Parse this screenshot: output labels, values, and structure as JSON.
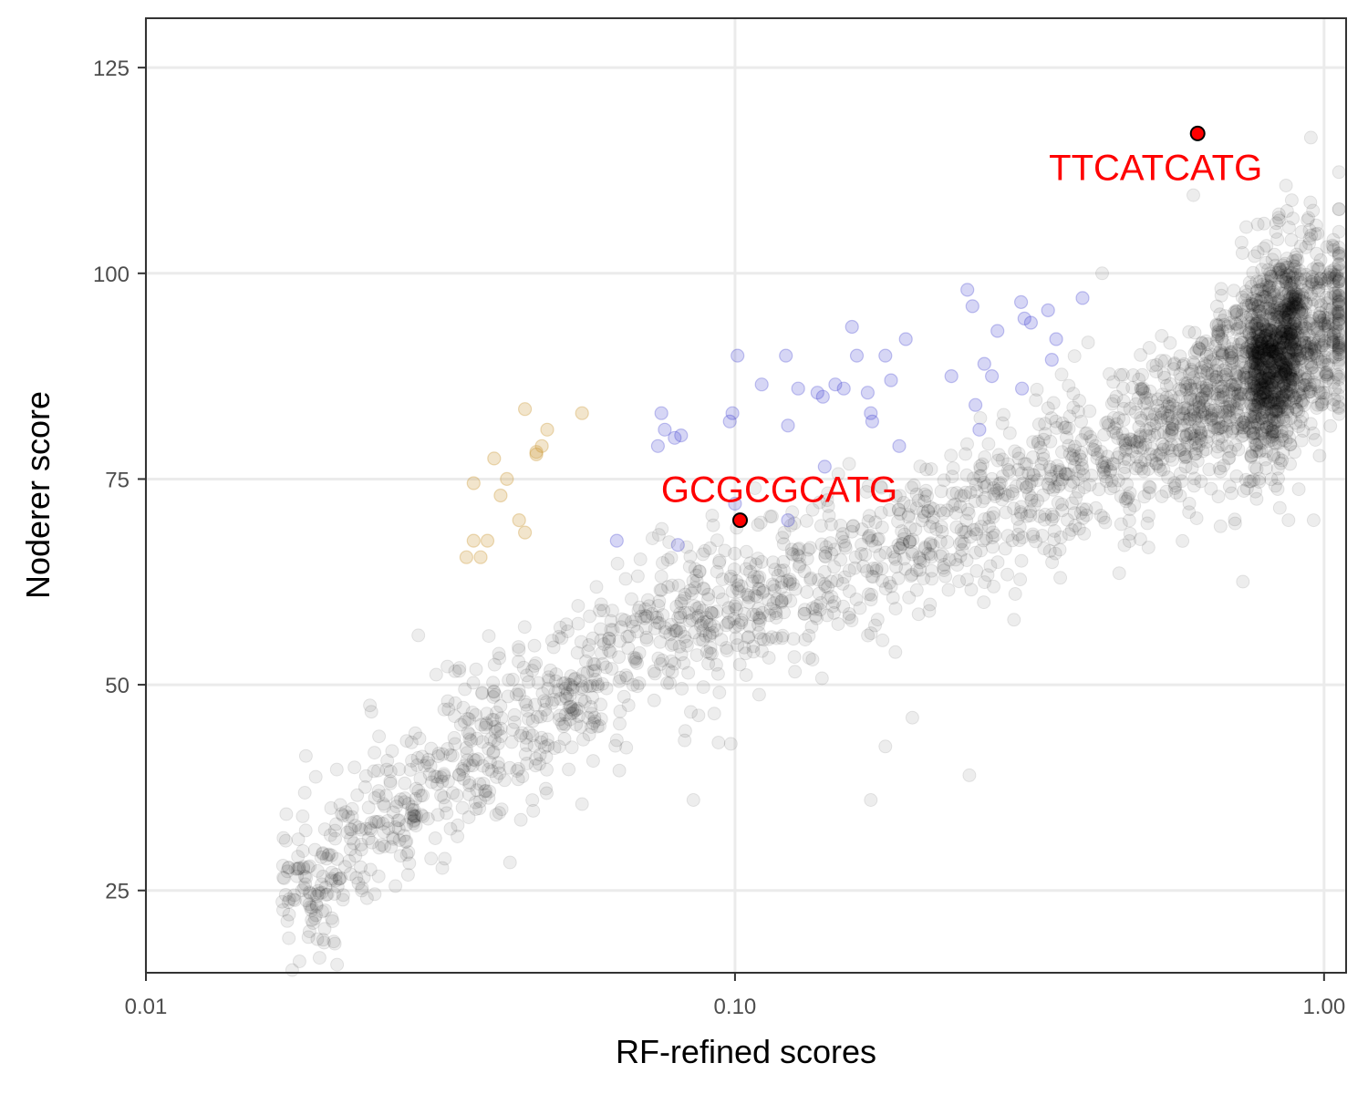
{
  "chart_data": {
    "type": "scatter",
    "title": "",
    "xlabel": "RF-refined scores",
    "ylabel": "Noderer score",
    "x_scale": "log10",
    "xlim": [
      0.01,
      1.09
    ],
    "ylim": [
      15,
      131
    ],
    "x_ticks": [
      {
        "value": 0.01,
        "label": "0.01"
      },
      {
        "value": 0.1,
        "label": "0.10"
      },
      {
        "value": 1.0,
        "label": "1.00"
      }
    ],
    "y_ticks": [
      {
        "value": 25,
        "label": "25"
      },
      {
        "value": 50,
        "label": "50"
      },
      {
        "value": 75,
        "label": "75"
      },
      {
        "value": 100,
        "label": "100"
      },
      {
        "value": 125,
        "label": "125"
      }
    ],
    "grid": true,
    "legend": "none",
    "colors": {
      "background_points": "#000000",
      "blue_group": "#3333cc",
      "orange_group": "#cc9933",
      "highlight_fill": "#ff0000",
      "highlight_label": "#ff0000"
    },
    "series": [
      {
        "color": "#3333cc",
        "opacity": 0.2,
        "points": [
          [
            0.063,
            67.5
          ],
          [
            0.074,
            79
          ],
          [
            0.075,
            83
          ],
          [
            0.076,
            81
          ],
          [
            0.079,
            80
          ],
          [
            0.081,
            80.3
          ],
          [
            0.08,
            67
          ],
          [
            0.098,
            82
          ],
          [
            0.099,
            83
          ],
          [
            0.1,
            72
          ],
          [
            0.101,
            90
          ],
          [
            0.111,
            86.5
          ],
          [
            0.122,
            90
          ],
          [
            0.123,
            81.5
          ],
          [
            0.123,
            70
          ],
          [
            0.128,
            86
          ],
          [
            0.138,
            85.5
          ],
          [
            0.141,
            85
          ],
          [
            0.142,
            76.5
          ],
          [
            0.148,
            86.5
          ],
          [
            0.153,
            86
          ],
          [
            0.158,
            93.5
          ],
          [
            0.161,
            90
          ],
          [
            0.168,
            85.5
          ],
          [
            0.17,
            83
          ],
          [
            0.171,
            82
          ],
          [
            0.18,
            90
          ],
          [
            0.184,
            87
          ],
          [
            0.19,
            79
          ],
          [
            0.195,
            92
          ],
          [
            0.233,
            87.5
          ],
          [
            0.248,
            98
          ],
          [
            0.253,
            96
          ],
          [
            0.256,
            84
          ],
          [
            0.26,
            81
          ],
          [
            0.265,
            89
          ],
          [
            0.273,
            87.5
          ],
          [
            0.279,
            93
          ],
          [
            0.307,
            86
          ],
          [
            0.306,
            96.5
          ],
          [
            0.31,
            94.5
          ],
          [
            0.318,
            94
          ],
          [
            0.34,
            95.5
          ],
          [
            0.345,
            89.5
          ],
          [
            0.351,
            92
          ],
          [
            0.389,
            97
          ]
        ]
      },
      {
        "color": "#cc9933",
        "opacity": 0.25,
        "points": [
          [
            0.035,
            65.5
          ],
          [
            0.036,
            74.5
          ],
          [
            0.036,
            67.5
          ],
          [
            0.037,
            65.5
          ],
          [
            0.038,
            67.5
          ],
          [
            0.039,
            77.5
          ],
          [
            0.04,
            73
          ],
          [
            0.041,
            75
          ],
          [
            0.043,
            70
          ],
          [
            0.044,
            68.5
          ],
          [
            0.044,
            83.5
          ],
          [
            0.046,
            78
          ],
          [
            0.046,
            78.3
          ],
          [
            0.047,
            79
          ],
          [
            0.048,
            81
          ],
          [
            0.055,
            83
          ]
        ]
      }
    ],
    "background_cloud": {
      "color": "#000000",
      "opacity": 0.07,
      "approx_point_count": 3200,
      "description_points": [
        [
          0.017,
          24.5
        ],
        [
          0.02,
          27
        ],
        [
          0.025,
          33
        ],
        [
          0.03,
          38
        ],
        [
          0.04,
          44
        ],
        [
          0.05,
          48
        ],
        [
          0.07,
          55
        ],
        [
          0.1,
          60
        ],
        [
          0.15,
          64
        ],
        [
          0.2,
          67
        ],
        [
          0.3,
          73
        ],
        [
          0.4,
          77
        ],
        [
          0.5,
          80
        ],
        [
          0.6,
          83
        ],
        [
          0.7,
          87
        ],
        [
          0.8,
          89
        ],
        [
          0.9,
          92
        ],
        [
          1.0,
          94
        ]
      ],
      "outliers": [
        [
          0.019,
          23
        ],
        [
          0.024,
          47.5
        ],
        [
          0.029,
          56
        ],
        [
          0.055,
          35.5
        ],
        [
          0.085,
          36
        ],
        [
          0.17,
          36
        ],
        [
          0.25,
          39
        ],
        [
          0.18,
          42.5
        ],
        [
          0.2,
          46
        ],
        [
          0.42,
          100
        ],
        [
          0.6,
          109.5
        ],
        [
          0.95,
          116.5
        ],
        [
          0.87,
          70
        ],
        [
          0.96,
          70
        ]
      ]
    },
    "highlights": [
      {
        "label": "GCGCGCATG",
        "x": 0.102,
        "y": 70
      },
      {
        "label": "TTCATCATG",
        "x": 0.61,
        "y": 117
      }
    ]
  }
}
